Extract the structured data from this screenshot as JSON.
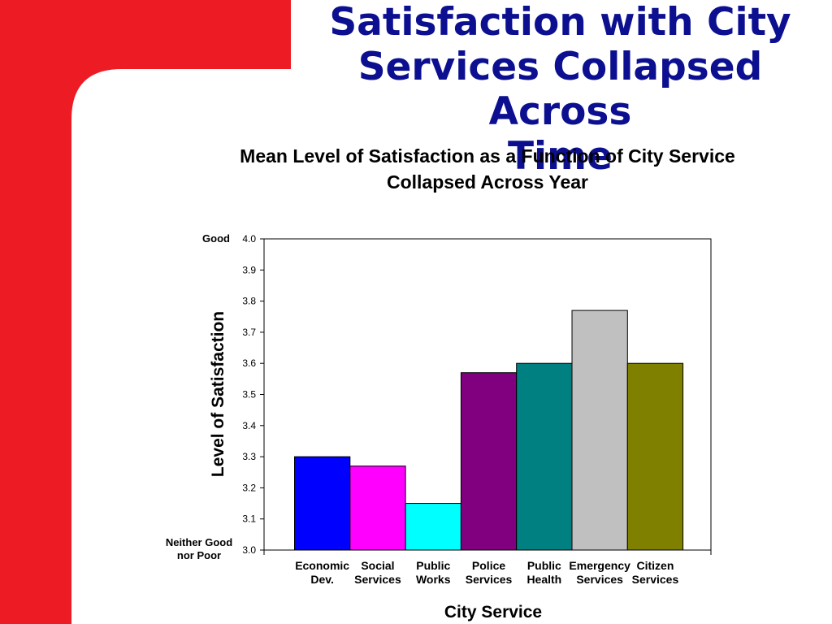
{
  "slide": {
    "title_lines": [
      "Satisfaction with City",
      "Services Collapsed Across",
      "Time"
    ],
    "accent_color": "#ed1c24",
    "title_color": "#0c1090"
  },
  "chart_data": {
    "type": "bar",
    "title_lines": [
      "Mean Level of Satisfaction as a Function of City Service",
      "Collapsed Across Year"
    ],
    "xlabel": "City Service",
    "ylabel": "Level of Satisfaction",
    "ylim": [
      3.0,
      4.0
    ],
    "yticks": [
      "3.0",
      "3.1",
      "3.2",
      "3.3",
      "3.4",
      "3.5",
      "3.6",
      "3.7",
      "3.8",
      "3.9",
      "4.0"
    ],
    "y_anchor_labels": {
      "top": "Good",
      "bottom_lines": [
        "Neither Good",
        "nor Poor"
      ]
    },
    "grid": false,
    "categories": [
      {
        "lines": [
          "Economic",
          "Dev."
        ],
        "value": 3.3,
        "color": "#0000ff"
      },
      {
        "lines": [
          "Social",
          "Services"
        ],
        "value": 3.27,
        "color": "#ff00ff"
      },
      {
        "lines": [
          "Public",
          "Works"
        ],
        "value": 3.15,
        "color": "#00ffff"
      },
      {
        "lines": [
          "Police",
          "Services"
        ],
        "value": 3.57,
        "color": "#800080"
      },
      {
        "lines": [
          "Public",
          "Health"
        ],
        "value": 3.6,
        "color": "#008080"
      },
      {
        "lines": [
          "Emergency",
          "Services"
        ],
        "value": 3.77,
        "color": "#c0c0c0"
      },
      {
        "lines": [
          "Citizen",
          "Services"
        ],
        "value": 3.6,
        "color": "#808000"
      }
    ]
  }
}
